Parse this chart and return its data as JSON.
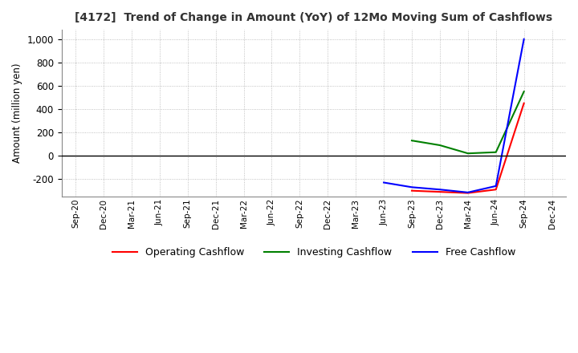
{
  "title": "[4172]  Trend of Change in Amount (YoY) of 12Mo Moving Sum of Cashflows",
  "ylabel": "Amount (million yen)",
  "ylim": [
    -350,
    1080
  ],
  "yticks": [
    -200,
    0,
    200,
    400,
    600,
    800,
    1000
  ],
  "background_color": "#ffffff",
  "grid_color": "#b0b0b0",
  "x_labels": [
    "Sep-20",
    "Dec-20",
    "Mar-21",
    "Jun-21",
    "Sep-21",
    "Dec-21",
    "Mar-22",
    "Jun-22",
    "Sep-22",
    "Dec-22",
    "Mar-23",
    "Jun-23",
    "Sep-23",
    "Dec-23",
    "Mar-24",
    "Jun-24",
    "Sep-24",
    "Dec-24"
  ],
  "operating": [
    null,
    null,
    null,
    null,
    null,
    null,
    null,
    null,
    null,
    null,
    null,
    null,
    -300,
    -310,
    -320,
    -290,
    450,
    null
  ],
  "investing": [
    null,
    null,
    null,
    null,
    null,
    null,
    null,
    null,
    null,
    null,
    null,
    null,
    130,
    90,
    20,
    30,
    550,
    null
  ],
  "free": [
    null,
    null,
    null,
    null,
    null,
    null,
    null,
    null,
    null,
    null,
    null,
    -230,
    -270,
    -290,
    -315,
    -260,
    1000,
    null
  ],
  "operating_color": "#ff0000",
  "investing_color": "#008000",
  "free_color": "#0000ff",
  "legend_labels": [
    "Operating Cashflow",
    "Investing Cashflow",
    "Free Cashflow"
  ]
}
